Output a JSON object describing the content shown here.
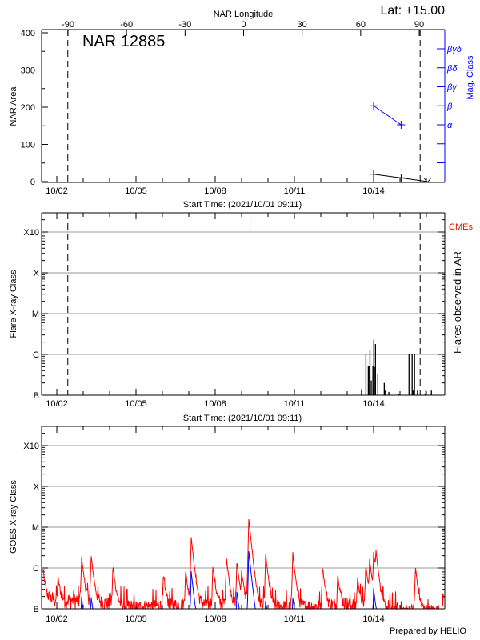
{
  "header": {
    "lat_label": "Lat: +15.00",
    "region_label": "NAR 12885",
    "prepared_by": "Prepared by HELIO"
  },
  "colors": {
    "axis": "#000000",
    "grid": "#999999",
    "mag_class": "#0000ff",
    "goes_long": "#ff0000",
    "goes_short": "#0000ff",
    "cme": "#ff0000",
    "flare_bars": "#000000"
  },
  "chart_data": [
    {
      "type": "line",
      "panel": "nar",
      "title": "NAR 12885",
      "xlabel": "Start Time: (2021/10/01 09:11)",
      "ylabel": "NAR Area",
      "y2label": "Mag. Class",
      "top_axis_label": "NAR Longitude",
      "top_ticks": [
        -90,
        -60,
        -30,
        0,
        30,
        60,
        90
      ],
      "xticks": [
        "10/02",
        "10/05",
        "10/08",
        "10/11",
        "10/14"
      ],
      "xlim": [
        "10/01 09:11",
        "10/16 16:50"
      ],
      "ylim": [
        0,
        400
      ],
      "yticks": [
        0,
        100,
        200,
        300,
        400
      ],
      "y2_categories": [
        "α",
        "β",
        "βγ",
        "βδ",
        "βγδ"
      ],
      "limb_crossings": [
        "10/02 10:00",
        "10/15 18:20"
      ],
      "series": [
        {
          "name": "NAR Area",
          "x": [
            "10/14 00:00",
            "10/15 01:00",
            "10/16 01:00"
          ],
          "y": [
            20,
            10,
            0
          ]
        },
        {
          "name": "Mag. Class",
          "x": [
            "10/14 00:00",
            "10/15 01:00"
          ],
          "y": [
            "β",
            "α"
          ]
        }
      ]
    },
    {
      "type": "bar",
      "panel": "flares",
      "xlabel": "Start Time: (2021/10/01 09:11)",
      "ylabel": "Flare X-ray Class",
      "y2label": "Flares observed in AR",
      "cme_label": "CMEs",
      "xticks": [
        "10/02",
        "10/05",
        "10/08",
        "10/11",
        "10/14"
      ],
      "yticks": [
        "B",
        "C",
        "M",
        "X",
        "X10"
      ],
      "ylim": [
        "B1.0",
        "X30"
      ],
      "yscale": "log",
      "grid": true,
      "limb_crossings": [
        "10/02 10:00",
        "10/15 18:20"
      ],
      "cmes": [
        "10/09 07:40"
      ],
      "flares": [
        {
          "t": "10/13 13:00",
          "class": "B1.4"
        },
        {
          "t": "10/13 17:00",
          "class": "C1.0"
        },
        {
          "t": "10/13 19:10",
          "class": "B5.1"
        },
        {
          "t": "10/13 20:10",
          "class": "B5.3"
        },
        {
          "t": "10/13 20:40",
          "class": "C1.3"
        },
        {
          "t": "10/13 21:50",
          "class": "B2.3"
        },
        {
          "t": "10/13 23:20",
          "class": "B5.3"
        },
        {
          "t": "10/14 00:10",
          "class": "C2.3"
        },
        {
          "t": "10/14 00:40",
          "class": "B4.9"
        },
        {
          "t": "10/14 01:40",
          "class": "C1.8"
        },
        {
          "t": "10/14 03:50",
          "class": "B3.4"
        },
        {
          "t": "10/14 09:40",
          "class": "B2.0"
        },
        {
          "t": "10/14 10:20",
          "class": "B1.3"
        },
        {
          "t": "10/14 13:50",
          "class": "B1.2"
        },
        {
          "t": "10/14 22:50",
          "class": "B1.1"
        },
        {
          "t": "10/15 08:10",
          "class": "C1.0"
        },
        {
          "t": "10/15 11:00",
          "class": "C1.0"
        },
        {
          "t": "10/15 11:50",
          "class": "B1.3"
        },
        {
          "t": "10/15 13:10",
          "class": "C1.0"
        },
        {
          "t": "10/15 15:50",
          "class": "B1.3"
        },
        {
          "t": "10/15 22:50",
          "class": "B1.1"
        },
        {
          "t": "10/15 23:30",
          "class": "B1.3"
        },
        {
          "t": "10/16 04:30",
          "class": "B1.3"
        }
      ]
    },
    {
      "type": "line",
      "panel": "goes",
      "ylabel": "GOES X-ray Class",
      "xticks": [
        "10/02",
        "10/05",
        "10/08",
        "10/11",
        "10/14"
      ],
      "yticks": [
        "B",
        "C",
        "M",
        "X",
        "X10"
      ],
      "ylim": [
        "B1.0",
        "X30"
      ],
      "yscale": "log",
      "grid": true,
      "series": [
        {
          "color": "#ff0000",
          "baseline": [
            {
              "t": "10/01 09:11",
              "class": "B1.8"
            },
            {
              "t": "10/03 00:00",
              "class": "B1.6"
            },
            {
              "t": "10/05 00:00",
              "class": "B1.1"
            },
            {
              "t": "10/06 00:00",
              "class": "B1.2"
            },
            {
              "t": "10/08 00:00",
              "class": "B1.3"
            },
            {
              "t": "10/10 00:00",
              "class": "B1.2"
            },
            {
              "t": "10/11 00:00",
              "class": "B1.1"
            },
            {
              "t": "10/13 00:00",
              "class": "B1.3"
            },
            {
              "t": "10/15 00:00",
              "class": "B0.9"
            },
            {
              "t": "10/16 16:50",
              "class": "B0.9"
            }
          ],
          "peaks": [
            {
              "t": "10/01 11:00",
              "class": "C0.9"
            },
            {
              "t": "10/02 01:00",
              "class": "B4.2"
            },
            {
              "t": "10/02 22:30",
              "class": "C1.7"
            },
            {
              "t": "10/03 07:10",
              "class": "C1.9"
            },
            {
              "t": "10/04 03:00",
              "class": "C1.0"
            },
            {
              "t": "10/06 01:00",
              "class": "B5.0"
            },
            {
              "t": "10/06 21:00",
              "class": "B7.5"
            },
            {
              "t": "10/07 02:10",
              "class": "C5.6"
            },
            {
              "t": "10/07 21:50",
              "class": "C1.0"
            },
            {
              "t": "10/08 10:10",
              "class": "C1.7"
            },
            {
              "t": "10/08 19:40",
              "class": "C1.3"
            },
            {
              "t": "10/09 00:00",
              "class": "B6.4"
            },
            {
              "t": "10/09 06:30",
              "class": "M1.6"
            },
            {
              "t": "10/09 21:50",
              "class": "C2.0"
            },
            {
              "t": "10/10 22:30",
              "class": "C2.2"
            },
            {
              "t": "10/12 01:30",
              "class": "C1.0"
            },
            {
              "t": "10/12 15:20",
              "class": "B6.1"
            },
            {
              "t": "10/13 09:20",
              "class": "B4.9"
            },
            {
              "t": "10/13 16:50",
              "class": "C1.1"
            },
            {
              "t": "10/13 20:20",
              "class": "C1.4"
            },
            {
              "t": "10/14 00:00",
              "class": "C2.2"
            },
            {
              "t": "10/14 02:10",
              "class": "C2.0"
            },
            {
              "t": "10/15 14:00",
              "class": "C1.0"
            },
            {
              "t": "10/16 15:20",
              "class": "B1.5"
            }
          ]
        },
        {
          "color": "#0000ff",
          "peaks": [
            {
              "t": "10/02 22:30",
              "class": "B1.7"
            },
            {
              "t": "10/03 07:10",
              "class": "B1.7"
            },
            {
              "t": "10/07 02:10",
              "class": "B8.0"
            },
            {
              "t": "10/08 19:40",
              "class": "B2.5"
            },
            {
              "t": "10/09 06:30",
              "class": "C2.6"
            },
            {
              "t": "10/09 21:50",
              "class": "B1.3"
            },
            {
              "t": "10/10 22:30",
              "class": "B1.6"
            },
            {
              "t": "10/14 00:00",
              "class": "B2.9"
            }
          ]
        }
      ]
    }
  ]
}
